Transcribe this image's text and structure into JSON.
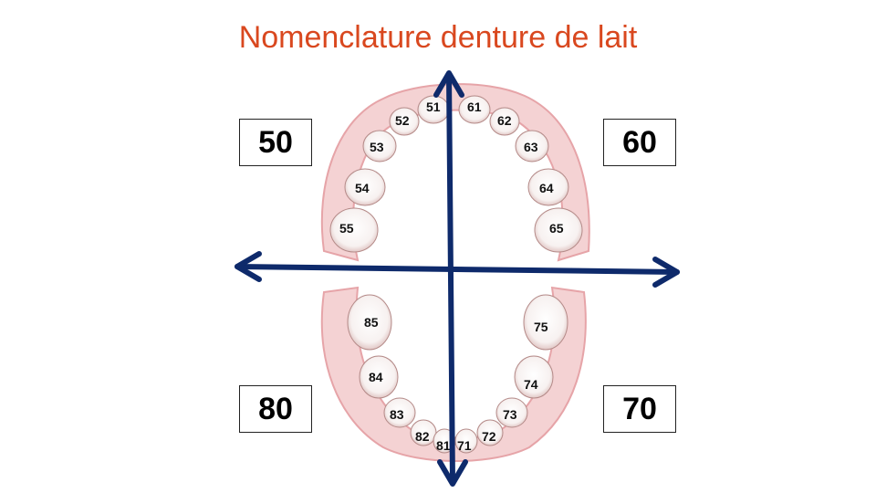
{
  "title": "Nomenclature denture de lait",
  "quadrants": {
    "upper_right": "50",
    "upper_left": "60",
    "lower_right": "80",
    "lower_left": "70"
  },
  "teeth": {
    "t51": "51",
    "t52": "52",
    "t53": "53",
    "t54": "54",
    "t55": "55",
    "t61": "61",
    "t62": "62",
    "t63": "63",
    "t64": "64",
    "t65": "65",
    "t71": "71",
    "t72": "72",
    "t73": "73",
    "t74": "74",
    "t75": "75",
    "t81": "81",
    "t82": "82",
    "t83": "83",
    "t84": "84",
    "t85": "85"
  },
  "colors": {
    "title": "#d9481f",
    "axis": "#0e2a6b",
    "gum": "#e8a0a4"
  }
}
